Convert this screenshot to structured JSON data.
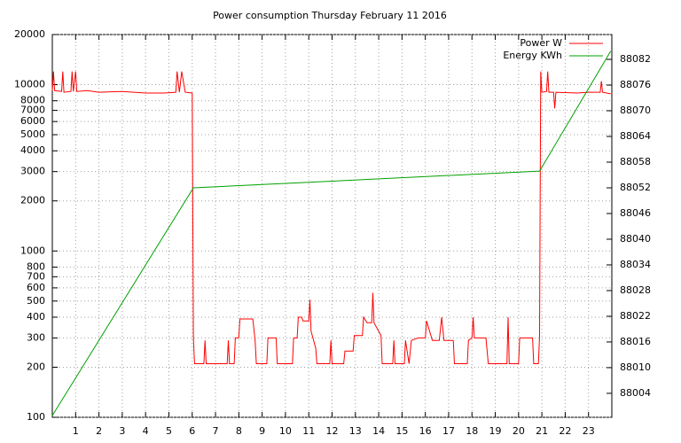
{
  "chart_data": {
    "type": "line",
    "title": "Power consumption Thursday February 11 2016",
    "xlim": [
      0,
      24
    ],
    "xticks": [
      1,
      2,
      3,
      4,
      5,
      6,
      7,
      8,
      9,
      10,
      11,
      12,
      13,
      14,
      15,
      16,
      17,
      18,
      19,
      20,
      21,
      22,
      23
    ],
    "ylim": [
      100,
      20000
    ],
    "log_y": true,
    "yticks": [
      100,
      200,
      300,
      400,
      500,
      600,
      700,
      800,
      1000,
      2000,
      3000,
      4000,
      5000,
      6000,
      7000,
      8000,
      10000,
      20000
    ],
    "y2lim": [
      87998.4,
      88087.8
    ],
    "y2ticks": [
      88004,
      88010,
      88016,
      88022,
      88028,
      88034,
      88040,
      88046,
      88052,
      88058,
      88064,
      88070,
      88076,
      88082
    ],
    "grid": true,
    "legend": "top-right",
    "series": [
      {
        "name": "Power W",
        "color": "#ff0000",
        "x": [
          0,
          0.05,
          0.1,
          0.4,
          0.45,
          0.5,
          0.8,
          0.85,
          0.9,
          1.0,
          1.05,
          1.5,
          2,
          3,
          3.5,
          4,
          4.8,
          5.3,
          5.35,
          5.45,
          5.55,
          5.7,
          6.0,
          6.05,
          6.1,
          6.5,
          6.55,
          6.6,
          7.5,
          7.55,
          7.6,
          7.8,
          7.85,
          8,
          8.05,
          8.6,
          8.7,
          8.75,
          9.2,
          9.25,
          9.6,
          9.65,
          10.3,
          10.35,
          10.5,
          10.55,
          10.7,
          10.75,
          11.0,
          11.05,
          11.1,
          11.3,
          11.35,
          11.9,
          11.95,
          12.0,
          12.5,
          12.55,
          12.9,
          12.95,
          13.3,
          13.35,
          13.5,
          13.7,
          13.75,
          13.8,
          14.1,
          14.15,
          14.6,
          14.65,
          14.7,
          15.1,
          15.15,
          15.3,
          15.4,
          15.7,
          16.0,
          16.05,
          16.3,
          16.6,
          16.7,
          16.8,
          17.2,
          17.25,
          17.8,
          17.85,
          18.0,
          18.05,
          18.1,
          18.6,
          18.7,
          19.5,
          19.55,
          19.6,
          20.0,
          20.05,
          20.6,
          20.65,
          20.85,
          20.9,
          20.95,
          21.0,
          21.2,
          21.25,
          21.3,
          21.5,
          21.55,
          21.6,
          22.5,
          23,
          23.5,
          23.55,
          23.6,
          23.95
        ],
        "values": [
          9200,
          12000,
          9200,
          9100,
          12000,
          9000,
          9100,
          12000,
          9100,
          12000,
          9100,
          9200,
          9000,
          9100,
          9000,
          8900,
          8900,
          9000,
          12000,
          9000,
          12000,
          9000,
          8900,
          300,
          210,
          210,
          290,
          210,
          210,
          290,
          210,
          210,
          300,
          300,
          390,
          390,
          290,
          210,
          210,
          300,
          300,
          210,
          210,
          300,
          300,
          400,
          400,
          380,
          380,
          510,
          330,
          260,
          210,
          210,
          290,
          210,
          210,
          250,
          250,
          310,
          310,
          400,
          370,
          370,
          560,
          370,
          310,
          210,
          210,
          290,
          210,
          210,
          290,
          210,
          290,
          300,
          300,
          380,
          290,
          290,
          400,
          290,
          290,
          210,
          210,
          290,
          300,
          400,
          300,
          300,
          210,
          210,
          400,
          210,
          210,
          300,
          300,
          210,
          210,
          310,
          12000,
          9000,
          9100,
          12000,
          9000,
          9000,
          7200,
          9000,
          8900,
          9000,
          9000,
          10500,
          9000,
          8800
        ]
      },
      {
        "name": "Energy KWh",
        "color": "#00a000",
        "axis": "y2",
        "x": [
          0,
          6.05,
          20.9,
          23.95
        ],
        "values": [
          87998.8,
          88052,
          88055.9,
          88083.9
        ]
      }
    ]
  }
}
